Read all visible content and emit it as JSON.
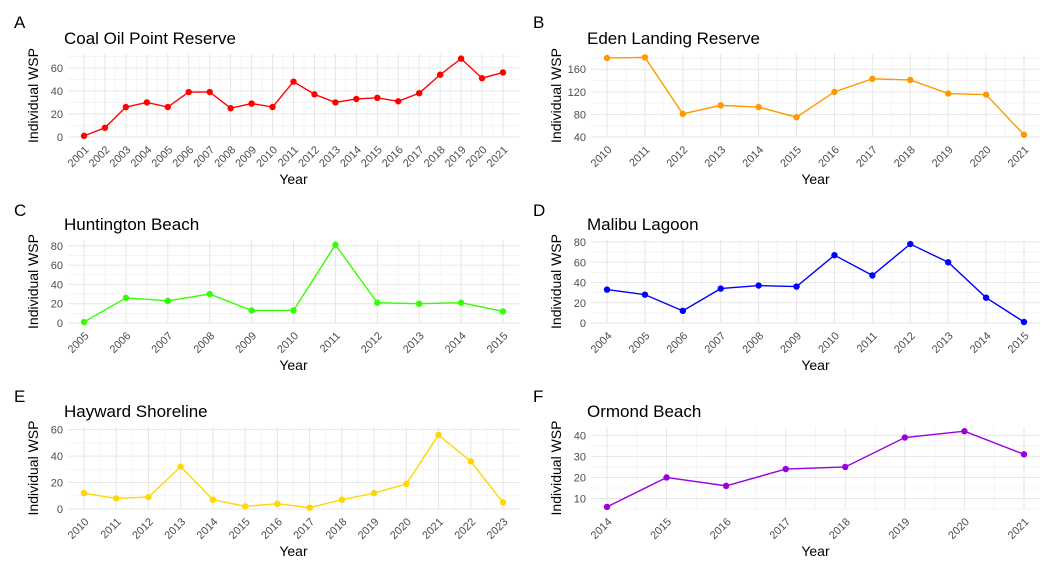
{
  "chart_data": [
    {
      "type": "line",
      "panel_label": "A",
      "title": "Coal Oil Point Reserve",
      "xlabel": "Year",
      "ylabel": "Individual WSP",
      "color": "#ff0000",
      "categories": [
        "2001",
        "2002",
        "2003",
        "2004",
        "2005",
        "2006",
        "2007",
        "2008",
        "2009",
        "2010",
        "2011",
        "2012",
        "2013",
        "2014",
        "2015",
        "2016",
        "2017",
        "2018",
        "2019",
        "2020",
        "2021"
      ],
      "values": [
        1,
        8,
        26,
        30,
        26,
        39,
        39,
        25,
        29,
        26,
        48,
        37,
        30,
        33,
        34,
        31,
        38,
        54,
        68,
        51,
        56
      ],
      "ylim": [
        0,
        72
      ],
      "yticks": [
        0,
        20,
        40,
        60
      ],
      "grid": true
    },
    {
      "type": "line",
      "panel_label": "B",
      "title": "Eden Landing Reserve",
      "xlabel": "Year",
      "ylabel": "Individual WSP",
      "color": "#ff9900",
      "categories": [
        "2010",
        "2011",
        "2012",
        "2013",
        "2014",
        "2015",
        "2016",
        "2017",
        "2018",
        "2019",
        "2020",
        "2021"
      ],
      "values": [
        180,
        181,
        81,
        96,
        93,
        75,
        120,
        143,
        141,
        117,
        115,
        44
      ],
      "ylim": [
        40,
        187
      ],
      "yticks": [
        40,
        80,
        120,
        160
      ],
      "grid": true
    },
    {
      "type": "line",
      "panel_label": "C",
      "title": "Huntington Beach",
      "xlabel": "Year",
      "ylabel": "Individual WSP",
      "color": "#33ff00",
      "categories": [
        "2005",
        "2006",
        "2007",
        "2008",
        "2009",
        "2010",
        "2011",
        "2012",
        "2013",
        "2014",
        "2015"
      ],
      "values": [
        1,
        26,
        23,
        30,
        13,
        13,
        81,
        21,
        20,
        21,
        12
      ],
      "ylim": [
        0,
        86
      ],
      "yticks": [
        0,
        20,
        40,
        60,
        80
      ],
      "grid": true
    },
    {
      "type": "line",
      "panel_label": "D",
      "title": "Malibu Lagoon",
      "xlabel": "Year",
      "ylabel": "Individual WSP",
      "color": "#0000ff",
      "categories": [
        "2004",
        "2005",
        "2006",
        "2007",
        "2008",
        "2009",
        "2010",
        "2011",
        "2012",
        "2013",
        "2014",
        "2015"
      ],
      "values": [
        33,
        28,
        12,
        34,
        37,
        36,
        67,
        47,
        78,
        60,
        25,
        1
      ],
      "ylim": [
        0,
        82
      ],
      "yticks": [
        0,
        20,
        40,
        60,
        80
      ],
      "grid": true
    },
    {
      "type": "line",
      "panel_label": "E",
      "title": "Hayward Shoreline",
      "xlabel": "Year",
      "ylabel": "Individual WSP",
      "color": "#ffd700",
      "categories": [
        "2010",
        "2011",
        "2012",
        "2013",
        "2014",
        "2015",
        "2016",
        "2017",
        "2018",
        "2019",
        "2020",
        "2021",
        "2022",
        "2023"
      ],
      "values": [
        12,
        8,
        9,
        32,
        7,
        2,
        4,
        1,
        7,
        12,
        19,
        56,
        36,
        5
      ],
      "ylim": [
        0,
        62
      ],
      "yticks": [
        0,
        20,
        40,
        60
      ],
      "grid": true
    },
    {
      "type": "line",
      "panel_label": "F",
      "title": "Ormond Beach",
      "xlabel": "Year",
      "ylabel": "Individual WSP",
      "color": "#9900dd",
      "categories": [
        "2014",
        "2015",
        "2016",
        "2017",
        "2018",
        "2019",
        "2020",
        "2021"
      ],
      "values": [
        6,
        20,
        16,
        24,
        25,
        39,
        42,
        31
      ],
      "ylim": [
        5,
        44
      ],
      "yticks": [
        10,
        20,
        30,
        40
      ],
      "grid": true
    }
  ]
}
